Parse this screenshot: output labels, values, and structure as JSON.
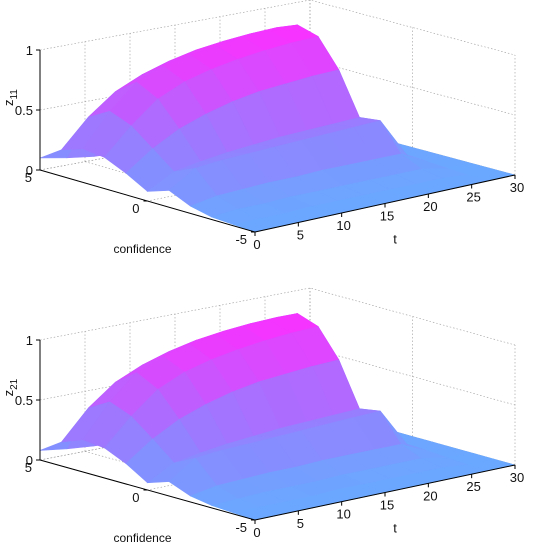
{
  "chart_data": [
    {
      "type": "surface",
      "panel": "top",
      "zlabel": "z_11",
      "zlabel_main": "z",
      "zlabel_sub": "11",
      "xlabel": "t",
      "ylabel": "confidence",
      "t_ticks": [
        "0",
        "5",
        "10",
        "15",
        "20",
        "25",
        "30"
      ],
      "confidence_ticks": [
        "5",
        "0",
        "-5"
      ],
      "z_ticks": [
        "0",
        "0.5",
        "1"
      ],
      "t_range": [
        0,
        30
      ],
      "confidence_range": [
        -5,
        5
      ],
      "z_range": [
        0,
        1
      ],
      "grid": true,
      "confidence_values": [
        5,
        4,
        3,
        2,
        1,
        0,
        -1,
        -2,
        -3,
        -4,
        -5
      ],
      "t_values": [
        0,
        3,
        6,
        9,
        12,
        15,
        18,
        21,
        24,
        27,
        30
      ],
      "z_values": [
        [
          0.1,
          0.06,
          0.03,
          0.02,
          0.02,
          0.01,
          0.01,
          0.01,
          0.01,
          0.01,
          0.0
        ],
        [
          0.22,
          0.45,
          0.62,
          0.72,
          0.79,
          0.84,
          0.87,
          0.89,
          0.9,
          0.05,
          0.0
        ],
        [
          0.28,
          0.55,
          0.75,
          0.84,
          0.89,
          0.92,
          0.95,
          0.96,
          0.97,
          0.06,
          0.0
        ],
        [
          0.26,
          0.48,
          0.66,
          0.76,
          0.82,
          0.86,
          0.89,
          0.91,
          0.92,
          0.05,
          0.0
        ],
        [
          0.18,
          0.34,
          0.46,
          0.54,
          0.6,
          0.64,
          0.66,
          0.68,
          0.69,
          0.04,
          0.0
        ],
        [
          0.08,
          0.2,
          0.24,
          0.27,
          0.29,
          0.31,
          0.32,
          0.33,
          0.34,
          0.03,
          0.0
        ],
        [
          0.14,
          0.28,
          0.3,
          0.31,
          0.32,
          0.33,
          0.34,
          0.35,
          0.36,
          0.03,
          0.0
        ],
        [
          0.06,
          0.1,
          0.11,
          0.12,
          0.12,
          0.13,
          0.13,
          0.13,
          0.13,
          0.02,
          0.0
        ],
        [
          0.02,
          0.04,
          0.04,
          0.05,
          0.05,
          0.05,
          0.05,
          0.05,
          0.05,
          0.01,
          0.0
        ],
        [
          0.01,
          0.01,
          0.01,
          0.02,
          0.02,
          0.02,
          0.02,
          0.02,
          0.02,
          0.0,
          0.0
        ],
        [
          0.0,
          0.0,
          0.0,
          0.0,
          0.0,
          0.0,
          0.0,
          0.0,
          0.0,
          0.0,
          0.0
        ]
      ]
    },
    {
      "type": "surface",
      "panel": "bottom",
      "zlabel": "z_21",
      "zlabel_main": "z",
      "zlabel_sub": "21",
      "xlabel": "t",
      "ylabel": "confidence",
      "t_ticks": [
        "0",
        "5",
        "10",
        "15",
        "20",
        "25",
        "30"
      ],
      "confidence_ticks": [
        "5",
        "0",
        "-5"
      ],
      "z_ticks": [
        "0",
        "0.5",
        "1"
      ],
      "t_range": [
        0,
        30
      ],
      "confidence_range": [
        -5,
        5
      ],
      "z_range": [
        0,
        1
      ],
      "grid": true,
      "confidence_values": [
        5,
        4,
        3,
        2,
        1,
        0,
        -1,
        -2,
        -3,
        -4,
        -5
      ],
      "t_values": [
        0,
        3,
        6,
        9,
        12,
        15,
        18,
        21,
        24,
        27,
        30
      ],
      "z_values": [
        [
          0.08,
          0.05,
          0.03,
          0.02,
          0.02,
          0.01,
          0.01,
          0.01,
          0.01,
          0.01,
          0.0
        ],
        [
          0.2,
          0.44,
          0.61,
          0.71,
          0.78,
          0.83,
          0.86,
          0.88,
          0.89,
          0.05,
          0.0
        ],
        [
          0.27,
          0.54,
          0.74,
          0.83,
          0.89,
          0.92,
          0.95,
          0.96,
          0.97,
          0.06,
          0.0
        ],
        [
          0.25,
          0.47,
          0.65,
          0.75,
          0.81,
          0.85,
          0.88,
          0.9,
          0.91,
          0.05,
          0.0
        ],
        [
          0.17,
          0.33,
          0.45,
          0.53,
          0.59,
          0.63,
          0.65,
          0.67,
          0.68,
          0.04,
          0.0
        ],
        [
          0.06,
          0.18,
          0.22,
          0.25,
          0.27,
          0.29,
          0.3,
          0.31,
          0.32,
          0.03,
          0.0
        ],
        [
          0.12,
          0.27,
          0.29,
          0.3,
          0.31,
          0.32,
          0.33,
          0.34,
          0.35,
          0.03,
          0.0
        ],
        [
          0.05,
          0.09,
          0.1,
          0.11,
          0.11,
          0.12,
          0.12,
          0.12,
          0.12,
          0.02,
          0.0
        ],
        [
          0.02,
          0.03,
          0.04,
          0.04,
          0.04,
          0.05,
          0.05,
          0.05,
          0.05,
          0.01,
          0.0
        ],
        [
          0.01,
          0.01,
          0.01,
          0.01,
          0.02,
          0.02,
          0.02,
          0.02,
          0.02,
          0.0,
          0.0
        ],
        [
          0.0,
          0.0,
          0.0,
          0.0,
          0.0,
          0.0,
          0.0,
          0.0,
          0.0,
          0.0,
          0.0
        ]
      ]
    }
  ],
  "colormap": {
    "low": "#6aa8ff",
    "mid": "#9a7bff",
    "high": "#ff2cff"
  },
  "axis_color": "#000000",
  "grid_color": "#9a9a9a"
}
